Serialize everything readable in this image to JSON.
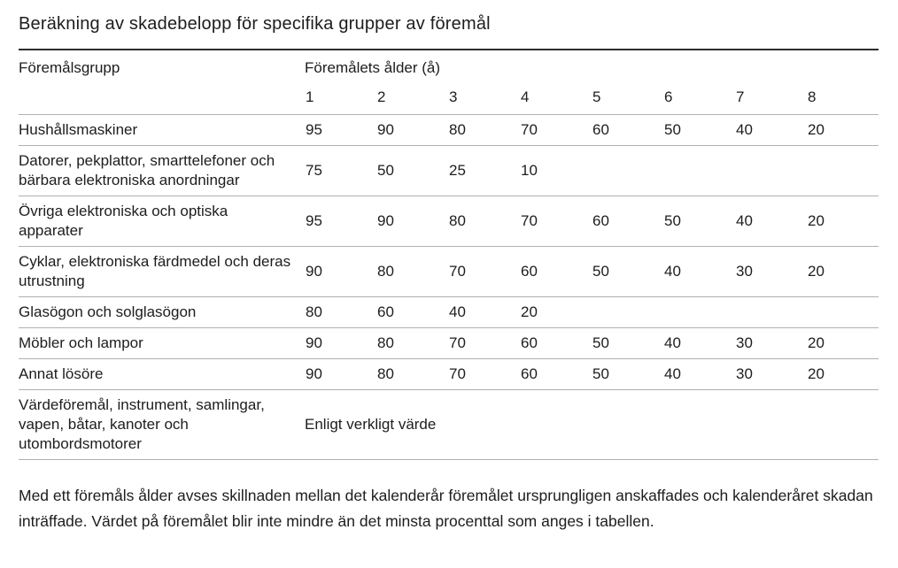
{
  "title": "Beräkning av skadebelopp för specifika grupper av föremål",
  "table": {
    "group_column_header": "Föremålsgrupp",
    "age_header": "Föremålets ålder (å)",
    "age_columns": [
      "1",
      "2",
      "3",
      "4",
      "5",
      "6",
      "7",
      "8"
    ],
    "rows": [
      {
        "group": "Hushållsmaskiner",
        "values": [
          "95",
          "90",
          "80",
          "70",
          "60",
          "50",
          "40",
          "20"
        ]
      },
      {
        "group": "Datorer, pekplattor, smarttelefoner och bärbara elektroniska anordningar",
        "values": [
          "75",
          "50",
          "25",
          "10",
          "",
          "",
          "",
          ""
        ]
      },
      {
        "group": "Övriga elektroniska och optiska apparater",
        "values": [
          "95",
          "90",
          "80",
          "70",
          "60",
          "50",
          "40",
          "20"
        ]
      },
      {
        "group": "Cyklar, elektroniska färdmedel och deras utrustning",
        "values": [
          "90",
          "80",
          "70",
          "60",
          "50",
          "40",
          "30",
          "20"
        ]
      },
      {
        "group": "Glasögon och solglasögon",
        "values": [
          "80",
          "60",
          "40",
          "20",
          "",
          "",
          "",
          ""
        ]
      },
      {
        "group": "Möbler och lampor",
        "values": [
          "90",
          "80",
          "70",
          "60",
          "50",
          "40",
          "30",
          "20"
        ]
      },
      {
        "group": "Annat lösöre",
        "values": [
          "90",
          "80",
          "70",
          "60",
          "50",
          "40",
          "30",
          "20"
        ]
      },
      {
        "group": "Värdeföremål, instrument, samlingar, vapen, båtar, kanoter och utombordsmotorer",
        "value_text": "Enligt verkligt värde"
      }
    ]
  },
  "footnote": "Med ett föremåls ålder avses skillnaden mellan det kalenderår föremålet ursprungligen anskaffades och kalenderåret skadan inträffade. Värdet på föremålet blir inte mindre än det minsta procenttal som anges i tabellen.",
  "colors": {
    "text": "#1d1d1d",
    "top_border": "#2d2d2d",
    "row_separator": "#b0b0b0",
    "background": "#ffffff"
  }
}
